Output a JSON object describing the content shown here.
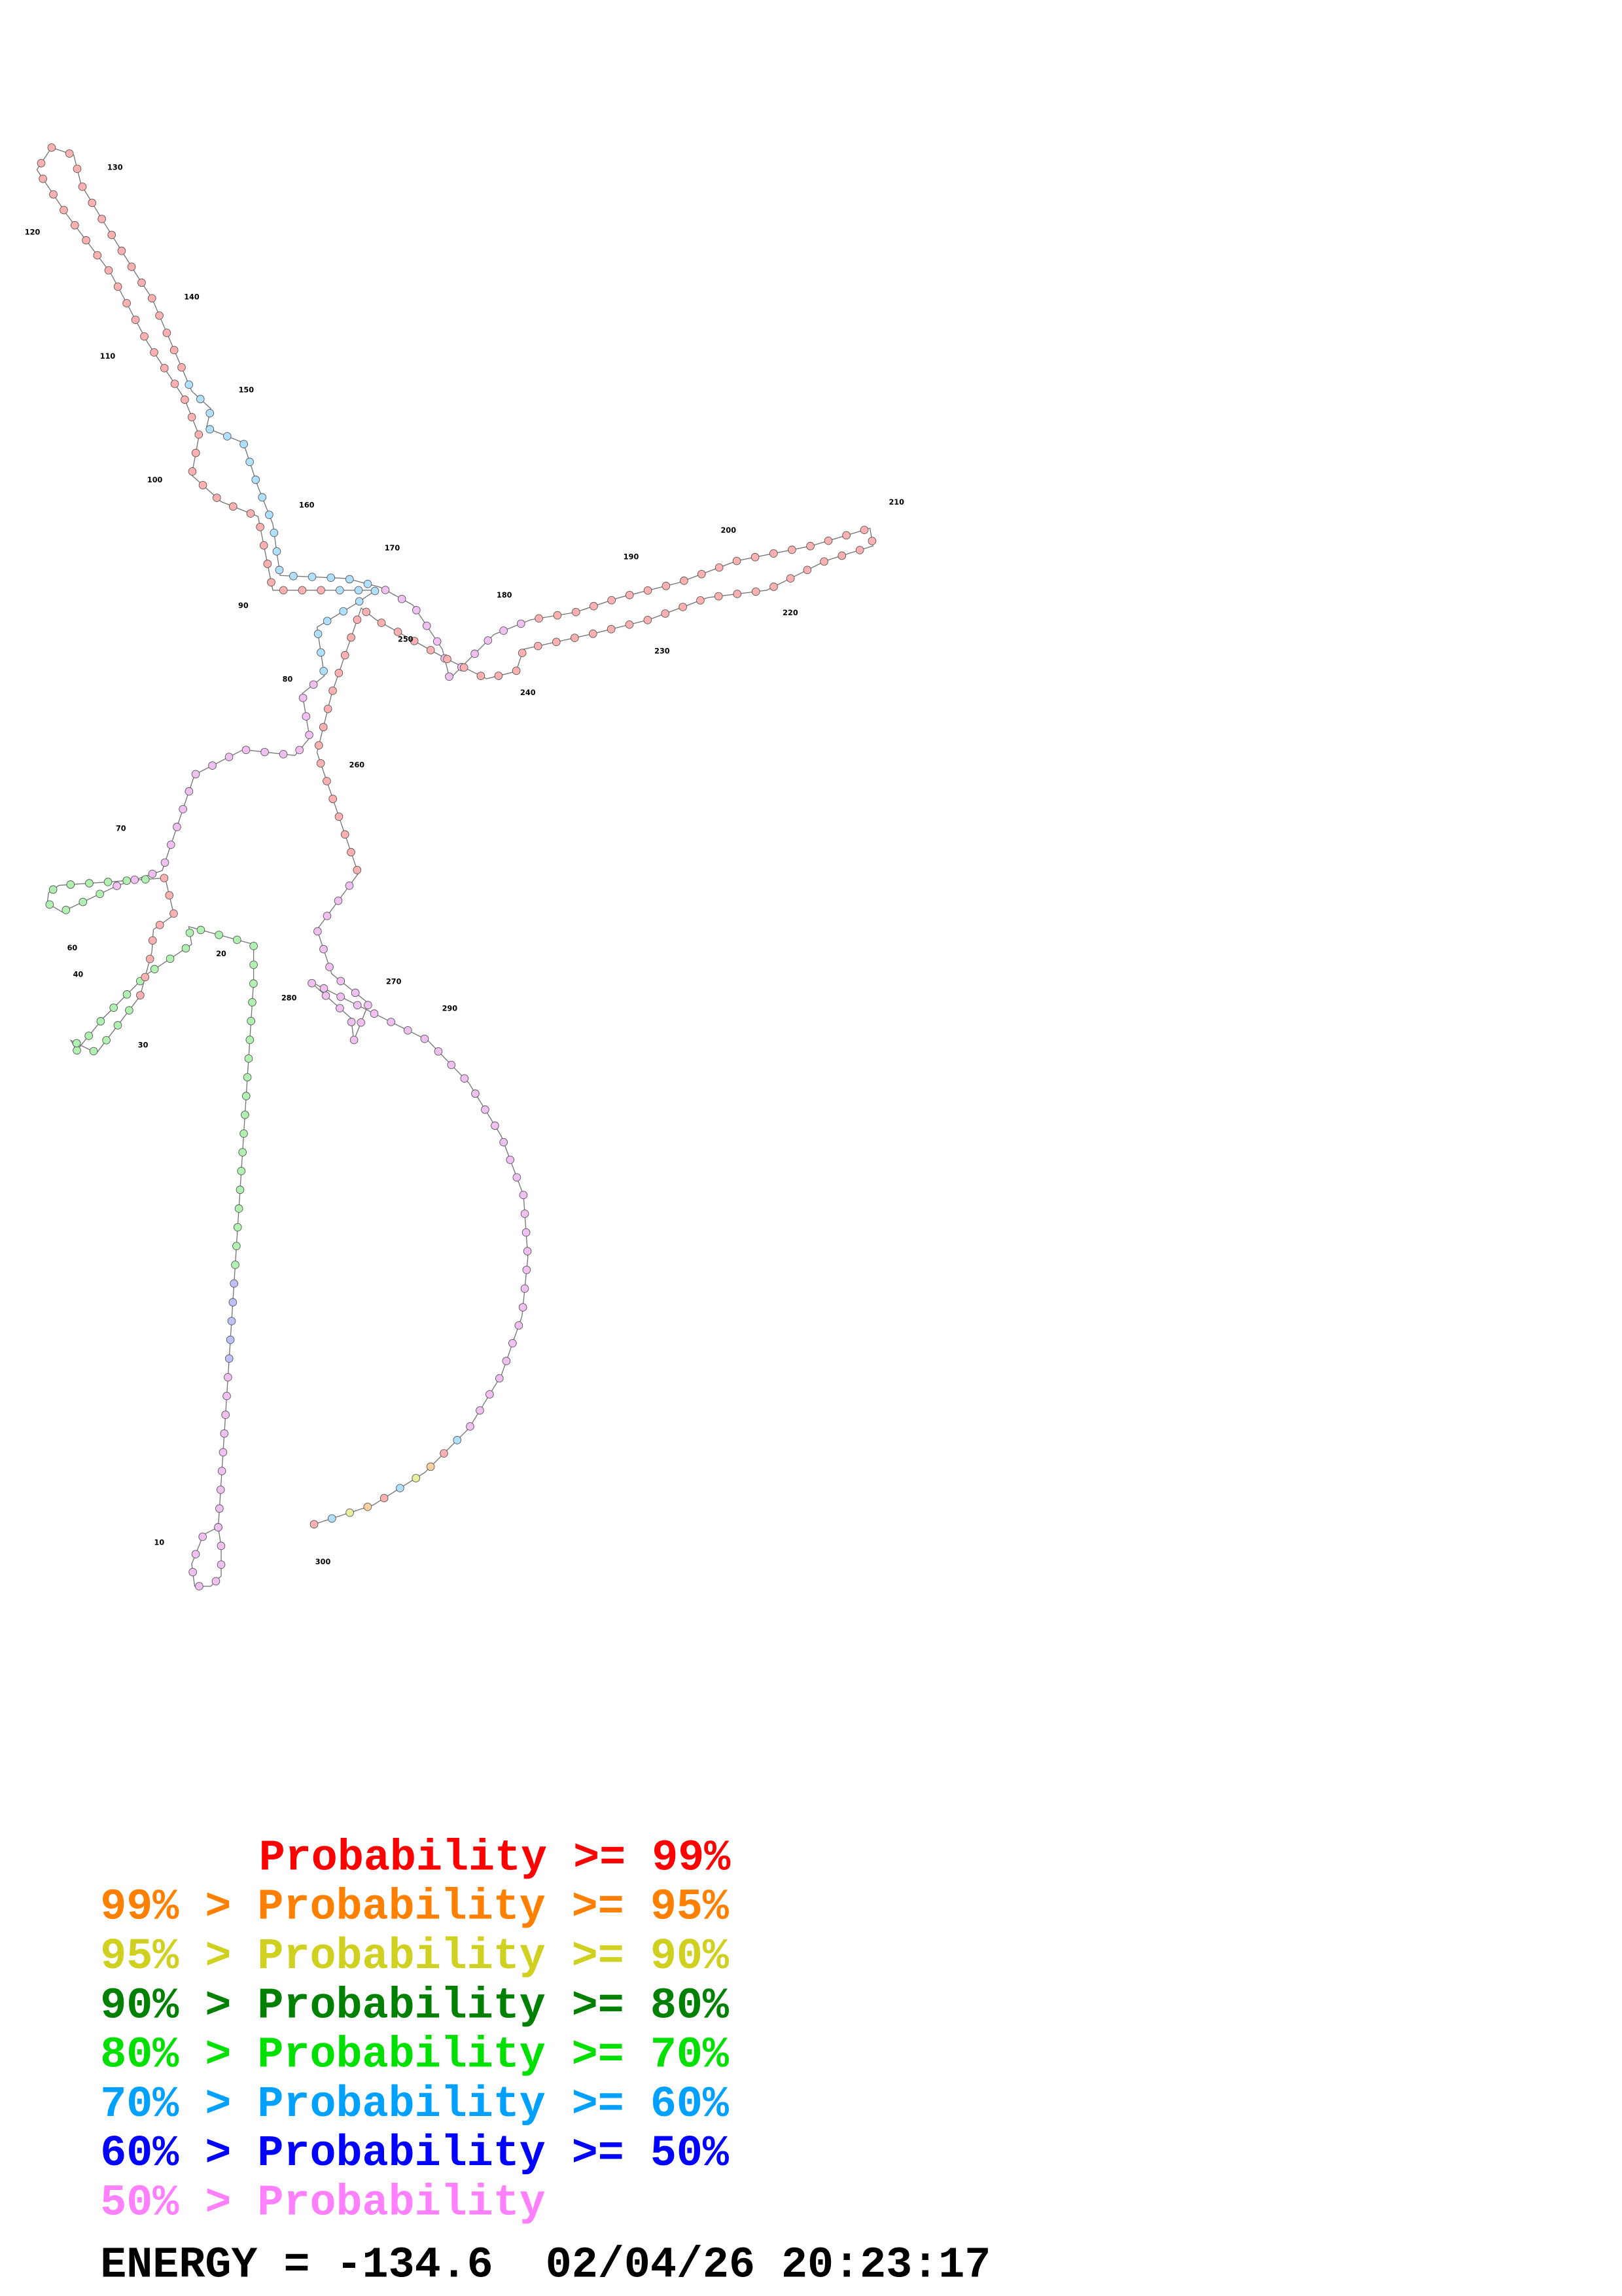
{
  "diagram": {
    "position_labels": [
      "10",
      "20",
      "30",
      "40",
      "60",
      "70",
      "80",
      "90",
      "100",
      "110",
      "120",
      "130",
      "140",
      "150",
      "160",
      "170",
      "180",
      "190",
      "200",
      "210",
      "220",
      "230",
      "240",
      "250",
      "260",
      "270",
      "280",
      "290",
      "300"
    ],
    "legend": [
      {
        "text": "Probability >= 99%",
        "color": "#ff0000"
      },
      {
        "text": "99% > Probability >= 95%",
        "color": "#ff8000"
      },
      {
        "text": "95% > Probability >= 90%",
        "color": "#d0d020"
      },
      {
        "text": "90% > Probability >= 80%",
        "color": "#008000"
      },
      {
        "text": "80% > Probability >= 70%",
        "color": "#00e000"
      },
      {
        "text": "70% > Probability >= 60%",
        "color": "#00a0ff"
      },
      {
        "text": "60% > Probability >= 50%",
        "color": "#0000ff"
      },
      {
        "text": "50% > Probability",
        "color": "#ff80ff"
      }
    ],
    "energy": "ENERGY = -134.6  02/04/26 20:23:17"
  }
}
